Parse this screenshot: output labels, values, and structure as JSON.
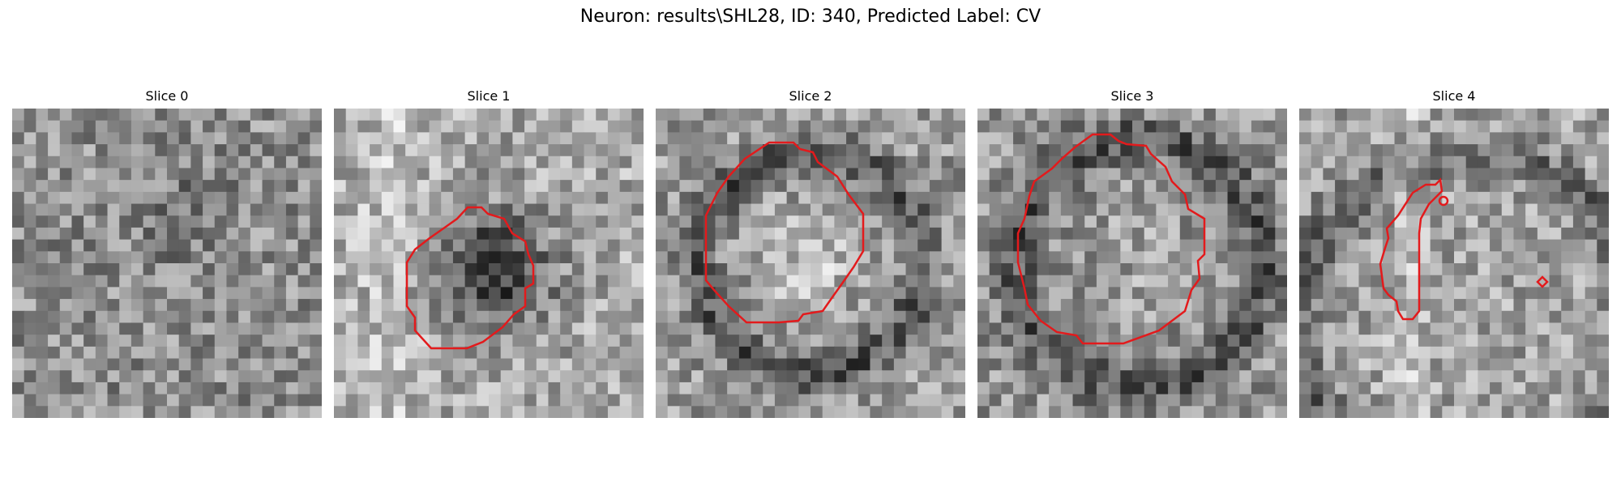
{
  "figure": {
    "title": "Neuron: results\\SHL28, ID: 340, Predicted Label: CV"
  },
  "panels": [
    {
      "title": "Slice 0"
    },
    {
      "title": "Slice 1"
    },
    {
      "title": "Slice 2"
    },
    {
      "title": "Slice 3"
    },
    {
      "title": "Slice 4"
    }
  ],
  "contour_color": "#e31a1c",
  "colormap": "grayscale"
}
